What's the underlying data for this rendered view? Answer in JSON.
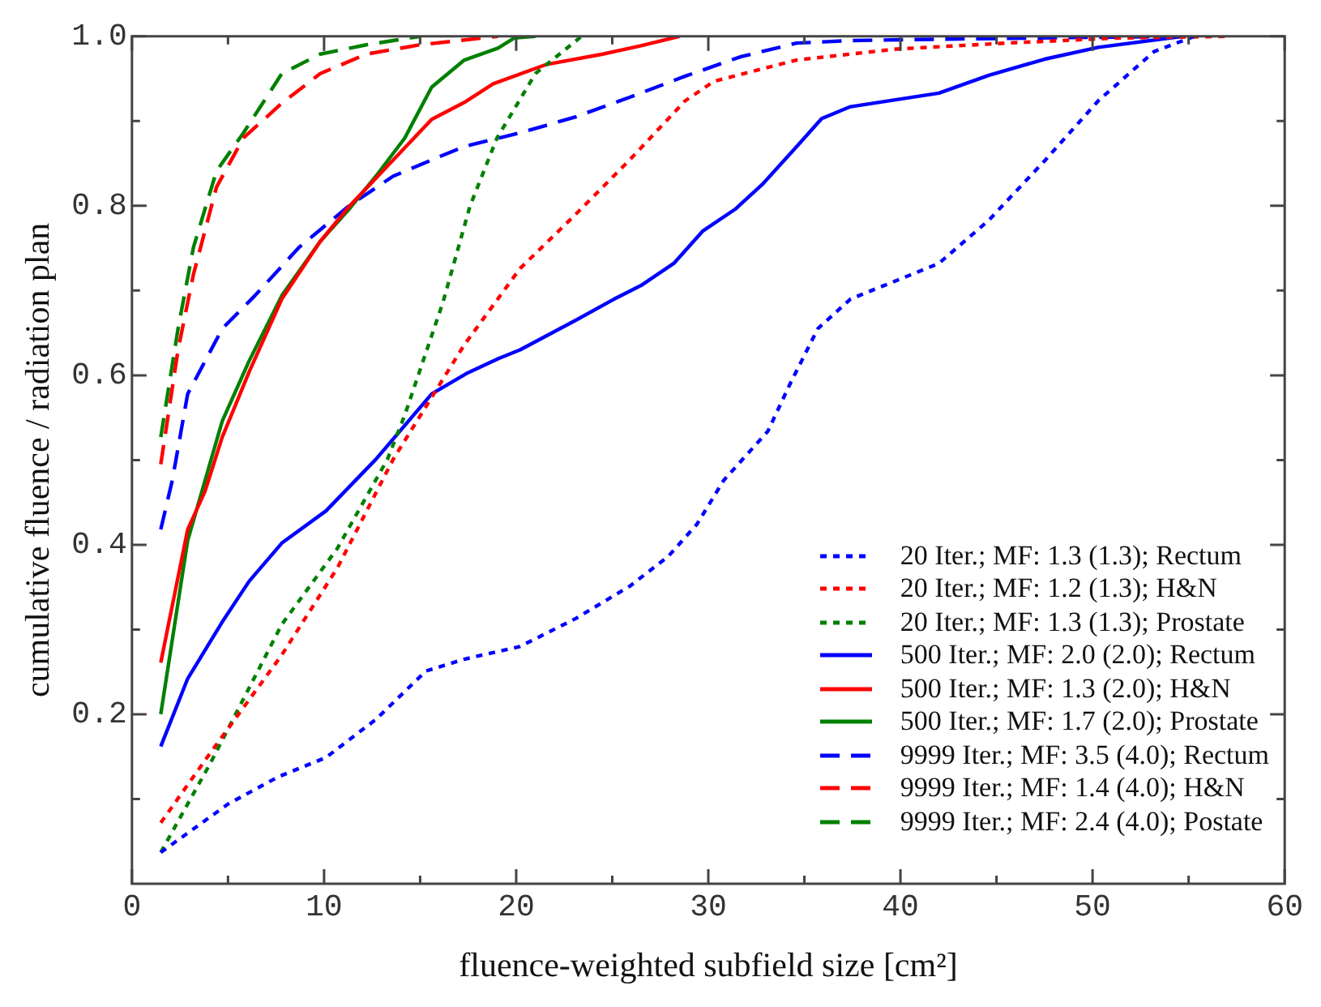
{
  "chart_data": {
    "type": "line",
    "xlabel": "fluence-weighted subfield size [cm²]",
    "ylabel": "cumulative fluence / radiation plan",
    "xlim": [
      0,
      60
    ],
    "xticks": [
      0,
      {
        "value": 5,
        "label": null
      },
      10,
      {
        "value": 15,
        "label": null
      },
      20,
      {
        "value": 25,
        "label": null
      },
      30,
      {
        "value": 35,
        "label": null
      },
      40,
      {
        "value": 45,
        "label": null
      },
      50,
      {
        "value": 55,
        "label": null
      },
      60
    ],
    "ylim": [
      0,
      1
    ],
    "yticks": [
      {
        "value": 0.1,
        "label": null
      },
      {
        "value": 0.2,
        "label": "0.2"
      },
      {
        "value": 0.3,
        "label": null
      },
      {
        "value": 0.4,
        "label": "0.4"
      },
      {
        "value": 0.5,
        "label": null
      },
      {
        "value": 0.6,
        "label": "0.6"
      },
      {
        "value": 0.7,
        "label": null
      },
      {
        "value": 0.8,
        "label": "0.8"
      },
      {
        "value": 0.9,
        "label": null
      },
      {
        "value": 1.0,
        "label": "1.0"
      }
    ],
    "grid": false,
    "legend": "bottom right",
    "marker": "none",
    "series": [
      {
        "name": "20 Iter.; MF: 1.3 (1.3); Rectum",
        "color": "#0000ff",
        "line_style": "dotted",
        "x": [
          1.5,
          5.0,
          7.6,
          10.1,
          12.7,
          15.3,
          17.3,
          20.2,
          23.1,
          25.9,
          27.9,
          29.4,
          30.8,
          33.1,
          34.3,
          35.7,
          37.4,
          42.0,
          44.6,
          47.5,
          50.3,
          53.2,
          55.3
        ],
        "values": [
          0.037,
          0.094,
          0.126,
          0.149,
          0.194,
          0.251,
          0.265,
          0.28,
          0.313,
          0.351,
          0.386,
          0.424,
          0.476,
          0.534,
          0.592,
          0.655,
          0.69,
          0.732,
          0.783,
          0.853,
          0.924,
          0.982,
          1.0
        ]
      },
      {
        "name": "20 Iter.; MF: 1.2 (1.3); H&N",
        "color": "#ff0000",
        "line_style": "dotted",
        "x": [
          1.5,
          4.1,
          7.8,
          10.7,
          13.6,
          17.3,
          20.2,
          23.1,
          25.9,
          28.8,
          30.3,
          34.6,
          39.8,
          45.5,
          51.3,
          57.0
        ],
        "values": [
          0.072,
          0.155,
          0.27,
          0.373,
          0.501,
          0.636,
          0.726,
          0.79,
          0.854,
          0.924,
          0.947,
          0.972,
          0.985,
          0.992,
          0.998,
          1.0
        ]
      },
      {
        "name": "20 Iter.; MF: 1.3 (1.3); Prostate",
        "color": "#008000",
        "line_style": "dotted",
        "x": [
          1.5,
          4.1,
          7.8,
          10.7,
          13.3,
          14.2,
          16.2,
          17.6,
          19.0,
          21.0,
          23.4
        ],
        "values": [
          0.037,
          0.143,
          0.306,
          0.396,
          0.501,
          0.553,
          0.687,
          0.8,
          0.88,
          0.956,
          1.0
        ]
      },
      {
        "name": "500 Iter.; MF: 2.0 (2.0); Rectum",
        "color": "#0000ff",
        "line_style": "solid",
        "x": [
          1.5,
          2.9,
          4.7,
          6.1,
          7.8,
          10.1,
          12.7,
          15.6,
          17.4,
          19.1,
          20.2,
          23.1,
          25.1,
          26.5,
          28.2,
          29.7,
          31.4,
          32.8,
          34.6,
          35.9,
          37.4,
          42.0,
          44.6,
          47.5,
          50.3,
          54.7
        ],
        "values": [
          0.162,
          0.242,
          0.309,
          0.357,
          0.402,
          0.44,
          0.501,
          0.578,
          0.602,
          0.62,
          0.63,
          0.665,
          0.69,
          0.706,
          0.732,
          0.77,
          0.796,
          0.825,
          0.87,
          0.903,
          0.917,
          0.933,
          0.954,
          0.973,
          0.987,
          1.0
        ]
      },
      {
        "name": "500 Iter.; MF: 1.3 (2.0); H&N",
        "color": "#ff0000",
        "line_style": "solid",
        "x": [
          1.5,
          2.9,
          3.8,
          4.7,
          6.1,
          7.8,
          9.8,
          11.3,
          13.3,
          15.6,
          17.3,
          18.8,
          21.6,
          24.5,
          26.5,
          28.5
        ],
        "values": [
          0.261,
          0.418,
          0.463,
          0.527,
          0.604,
          0.69,
          0.758,
          0.799,
          0.847,
          0.902,
          0.922,
          0.944,
          0.967,
          0.979,
          0.989,
          1.0
        ]
      },
      {
        "name": "500 Iter.; MF: 1.7 (2.0); Prostate",
        "color": "#008000",
        "line_style": "solid",
        "x": [
          1.5,
          2.9,
          4.7,
          6.1,
          7.8,
          9.8,
          11.3,
          12.7,
          14.2,
          15.6,
          17.3,
          19.05,
          19.9,
          21.0
        ],
        "values": [
          0.2,
          0.405,
          0.546,
          0.617,
          0.694,
          0.758,
          0.796,
          0.835,
          0.88,
          0.94,
          0.972,
          0.986,
          0.998,
          1.0
        ]
      },
      {
        "name": "9999 Iter.; MF: 3.5 (4.0); Rectum",
        "color": "#0000ff",
        "line_style": "dashed",
        "x": [
          1.5,
          2.1,
          2.9,
          4.7,
          6.4,
          8.7,
          11.3,
          13.6,
          15.9,
          17.3,
          20.2,
          23.1,
          25.9,
          28.8,
          31.7,
          34.6,
          37.4,
          43.1,
          54.7
        ],
        "values": [
          0.418,
          0.476,
          0.578,
          0.655,
          0.694,
          0.751,
          0.8,
          0.835,
          0.857,
          0.87,
          0.886,
          0.905,
          0.928,
          0.953,
          0.976,
          0.992,
          0.995,
          0.997,
          1.0
        ]
      },
      {
        "name": "9999 Iter.; MF: 1.4 (4.0); H&N",
        "color": "#ff0000",
        "line_style": "dashed",
        "x": [
          1.5,
          2.4,
          3.2,
          4.4,
          5.8,
          7.8,
          9.8,
          12.2,
          15.0,
          19.05
        ],
        "values": [
          0.495,
          0.63,
          0.719,
          0.822,
          0.88,
          0.921,
          0.956,
          0.979,
          0.99,
          1.0
        ]
      },
      {
        "name": "9999 Iter.; MF: 2.4 (4.0); Postate",
        "color": "#008000",
        "line_style": "dashed",
        "x": [
          1.5,
          2.4,
          3.2,
          4.4,
          5.8,
          7.8,
          9.8,
          12.2,
          15.0
        ],
        "values": [
          0.527,
          0.655,
          0.751,
          0.841,
          0.886,
          0.956,
          0.979,
          0.99,
          1.0
        ]
      }
    ]
  }
}
